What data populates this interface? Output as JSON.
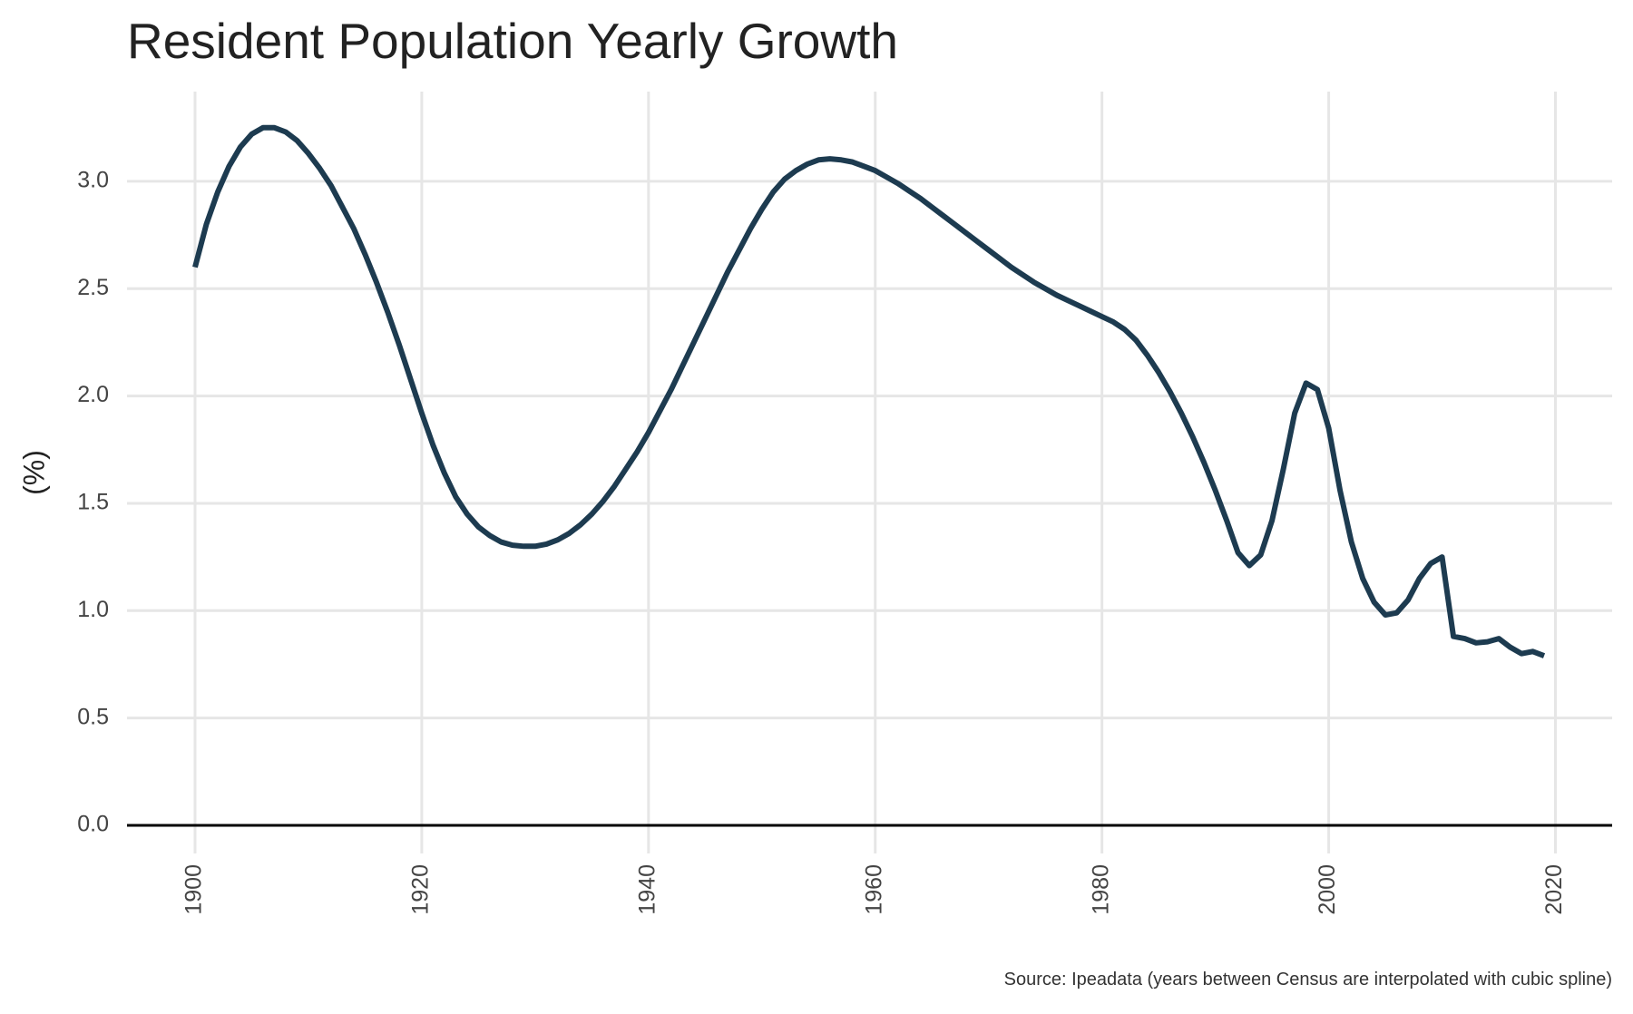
{
  "chart_data": {
    "type": "line",
    "title": "Resident Population Yearly Growth",
    "y_label": "(%)",
    "caption": "Source: Ipeadata (years between Census are interpolated with cubic spline)",
    "x": [
      1900,
      1901,
      1902,
      1903,
      1904,
      1905,
      1906,
      1907,
      1908,
      1909,
      1910,
      1911,
      1912,
      1913,
      1914,
      1915,
      1916,
      1917,
      1918,
      1919,
      1920,
      1921,
      1922,
      1923,
      1924,
      1925,
      1926,
      1927,
      1928,
      1929,
      1930,
      1931,
      1932,
      1933,
      1934,
      1935,
      1936,
      1937,
      1938,
      1939,
      1940,
      1941,
      1942,
      1943,
      1944,
      1945,
      1946,
      1947,
      1948,
      1949,
      1950,
      1951,
      1952,
      1953,
      1954,
      1955,
      1956,
      1957,
      1958,
      1959,
      1960,
      1961,
      1962,
      1963,
      1964,
      1965,
      1966,
      1967,
      1968,
      1969,
      1970,
      1971,
      1972,
      1973,
      1974,
      1975,
      1976,
      1977,
      1978,
      1979,
      1980,
      1981,
      1982,
      1983,
      1984,
      1985,
      1986,
      1987,
      1988,
      1989,
      1990,
      1991,
      1992,
      1993,
      1994,
      1995,
      1996,
      1997,
      1998,
      1999,
      2000,
      2001,
      2002,
      2003,
      2004,
      2005,
      2006,
      2007,
      2008,
      2009,
      2010,
      2011,
      2012,
      2013,
      2014,
      2015,
      2016,
      2017,
      2018,
      2019
    ],
    "series": [
      {
        "color": "#1d3b50",
        "values": [
          2.6,
          2.8,
          2.95,
          3.07,
          3.16,
          3.22,
          3.25,
          3.25,
          3.23,
          3.19,
          3.13,
          3.06,
          2.98,
          2.88,
          2.78,
          2.66,
          2.53,
          2.39,
          2.24,
          2.08,
          1.92,
          1.77,
          1.64,
          1.53,
          1.45,
          1.39,
          1.35,
          1.32,
          1.305,
          1.3,
          1.3,
          1.31,
          1.33,
          1.36,
          1.4,
          1.45,
          1.51,
          1.58,
          1.66,
          1.74,
          1.83,
          1.93,
          2.03,
          2.14,
          2.25,
          2.36,
          2.47,
          2.58,
          2.68,
          2.78,
          2.87,
          2.95,
          3.01,
          3.05,
          3.08,
          3.1,
          3.105,
          3.1,
          3.09,
          3.07,
          3.05,
          3.02,
          2.99,
          2.955,
          2.92,
          2.88,
          2.84,
          2.8,
          2.76,
          2.72,
          2.68,
          2.64,
          2.6,
          2.565,
          2.53,
          2.5,
          2.47,
          2.445,
          2.42,
          2.395,
          2.37,
          2.345,
          2.31,
          2.26,
          2.19,
          2.11,
          2.02,
          1.92,
          1.81,
          1.69,
          1.56,
          1.42,
          1.27,
          1.21,
          1.26,
          1.42,
          1.66,
          1.92,
          2.06,
          2.03,
          1.85,
          1.56,
          1.32,
          1.15,
          1.04,
          0.98,
          0.99,
          1.05,
          1.15,
          1.22,
          1.25,
          0.88,
          0.87,
          0.85,
          0.855,
          0.87,
          0.83,
          0.8,
          0.81,
          0.79
        ]
      }
    ],
    "xlim": [
      1894,
      2025
    ],
    "xticks": [
      1900,
      1920,
      1940,
      1960,
      1980,
      2000,
      2020
    ],
    "ylim": [
      -0.131,
      3.418
    ],
    "yticks": [
      {
        "value": 0,
        "label": "0.0"
      },
      0.5,
      {
        "value": 1,
        "label": "1.0"
      },
      1.5,
      {
        "value": 2,
        "label": "2.0"
      },
      2.5,
      {
        "value": 3,
        "label": "3.0"
      }
    ],
    "grid": true,
    "zero_line": true
  }
}
